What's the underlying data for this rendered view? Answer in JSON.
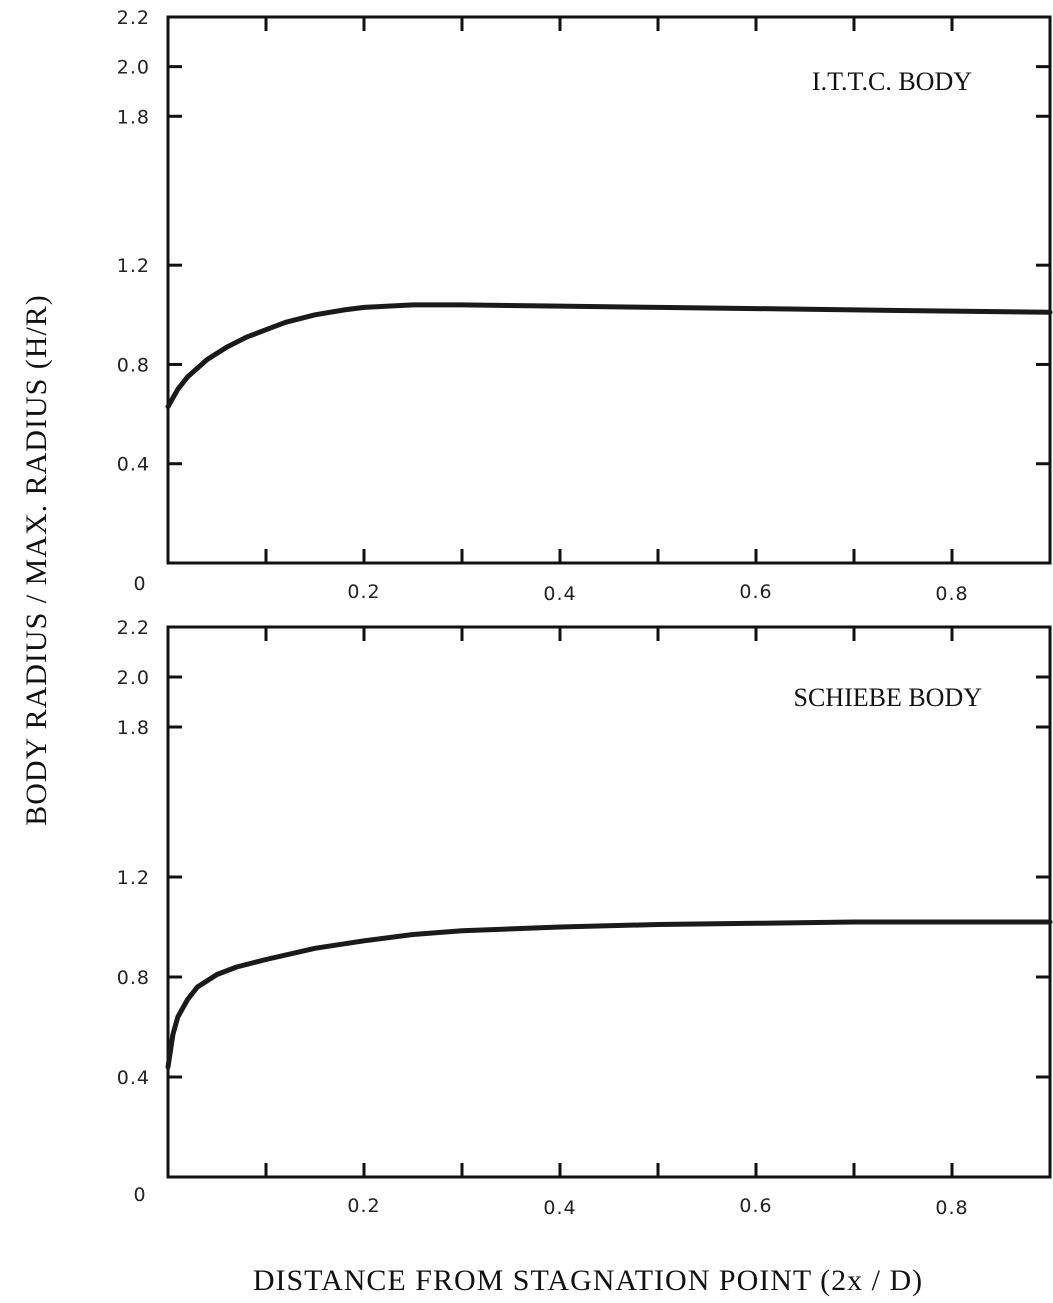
{
  "figure": {
    "ylabel": "BODY RADIUS / MAX. RADIUS (H/R)",
    "xlabel": "DISTANCE FROM STAGNATION POINT (2x / D)"
  },
  "chart_data": [
    {
      "type": "line",
      "title": "I.T.T.C. BODY",
      "xlabel": "DISTANCE FROM STAGNATION POINT (2x / D)",
      "ylabel": "BODY RADIUS / MAX. RADIUS (H/R)",
      "xlim": [
        0,
        0.9
      ],
      "ylim": [
        0,
        2.2
      ],
      "x_ticks": [
        0.2,
        0.4,
        0.6,
        0.8
      ],
      "x_tick_labels": [
        "0.2",
        "0.4",
        "0.6",
        "0.8"
      ],
      "y_ticks": [
        0.4,
        0.8,
        1.2,
        1.8,
        2.0,
        2.2
      ],
      "y_tick_labels": [
        "0.4",
        "0.8",
        "1.2",
        "1.8",
        "2.0",
        "2.2"
      ],
      "origin_label": "0",
      "grid": false,
      "series": [
        {
          "x": [
            0.0,
            0.01,
            0.02,
            0.04,
            0.06,
            0.08,
            0.1,
            0.12,
            0.15,
            0.18,
            0.2,
            0.25,
            0.3,
            0.4,
            0.5,
            0.6,
            0.7,
            0.8,
            0.9
          ],
          "y": [
            0.63,
            0.7,
            0.75,
            0.82,
            0.87,
            0.91,
            0.94,
            0.97,
            1.0,
            1.02,
            1.03,
            1.04,
            1.04,
            1.035,
            1.03,
            1.025,
            1.02,
            1.015,
            1.01
          ]
        }
      ]
    },
    {
      "type": "line",
      "title": "SCHIEBE BODY",
      "xlabel": "DISTANCE FROM STAGNATION POINT (2x / D)",
      "ylabel": "BODY RADIUS / MAX. RADIUS (H/R)",
      "xlim": [
        0,
        0.9
      ],
      "ylim": [
        0,
        2.2
      ],
      "x_ticks": [
        0.2,
        0.4,
        0.6,
        0.8
      ],
      "x_tick_labels": [
        "0.2",
        "0.4",
        "0.6",
        "0.8"
      ],
      "y_ticks": [
        0.4,
        0.8,
        1.2,
        1.8,
        2.0,
        2.2
      ],
      "y_tick_labels": [
        "0.4",
        "0.8",
        "1.2",
        "1.8",
        "2.0",
        "2.2"
      ],
      "origin_label": "0",
      "grid": false,
      "series": [
        {
          "x": [
            0.0,
            0.005,
            0.01,
            0.02,
            0.03,
            0.05,
            0.07,
            0.1,
            0.15,
            0.2,
            0.25,
            0.3,
            0.4,
            0.5,
            0.6,
            0.7,
            0.8,
            0.9
          ],
          "y": [
            0.44,
            0.57,
            0.64,
            0.71,
            0.76,
            0.81,
            0.84,
            0.87,
            0.915,
            0.945,
            0.97,
            0.985,
            1.0,
            1.01,
            1.015,
            1.02,
            1.02,
            1.02
          ]
        }
      ]
    }
  ]
}
